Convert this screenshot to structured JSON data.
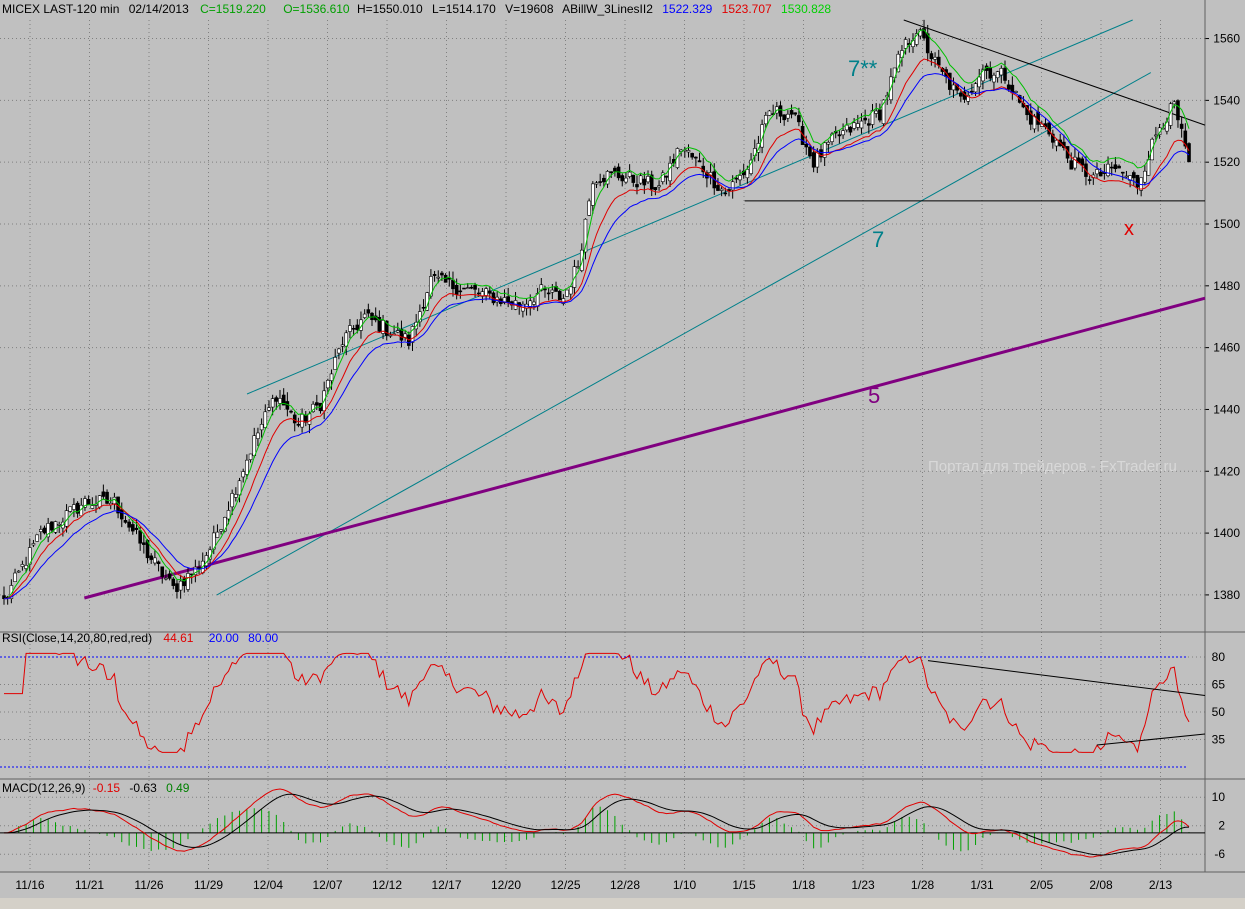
{
  "header": {
    "symbol": "MICEX LAST-120 min",
    "date": "02/14/2013",
    "close": "C=1519.220",
    "open": "O=1536.610",
    "high": "H=1550.010",
    "low": "L=1514.170",
    "volume": "V=19608",
    "study": "ABillW_3LinesII2",
    "line_blue": "1522.329",
    "line_red": "1523.707",
    "line_green": "1530.828"
  },
  "annotations": {
    "channel_top": "7**",
    "channel_bottom": "7",
    "support": "5",
    "target": "x",
    "watermark": "Портал для трейдеров - FxTrader.ru"
  },
  "rsi": {
    "title": "RSI(Close,14,20,80,red,red)",
    "value": "44.61",
    "low": "20.00",
    "high": "80.00"
  },
  "macd": {
    "title": "MACD(12,26,9)",
    "v1": "-0.15",
    "v2": "-0.63",
    "v3": "0.49"
  },
  "colors": {
    "background": "#c0c0c0",
    "green": "#00c000",
    "red": "#e00000",
    "blue": "#0000ff",
    "teal": "#00808a",
    "purple": "#800080"
  },
  "chart_data": [
    {
      "type": "candlestick",
      "title": "MICEX LAST-120 min",
      "ylim": [
        1368,
        1566
      ],
      "y_ticks": [
        1380,
        1400,
        1420,
        1440,
        1460,
        1480,
        1500,
        1520,
        1540,
        1560
      ],
      "x_ticks": [
        "11/16",
        "11/21",
        "11/26",
        "11/29",
        "12/04",
        "12/07",
        "12/12",
        "12/17",
        "12/20",
        "12/25",
        "12/28",
        "1/10",
        "1/15",
        "1/18",
        "1/23",
        "1/28",
        "1/31",
        "2/05",
        "2/08",
        "2/13"
      ],
      "close_anchors": [
        [
          0,
          1378
        ],
        [
          10,
          1400
        ],
        [
          22,
          1410
        ],
        [
          30,
          1410
        ],
        [
          38,
          1395
        ],
        [
          46,
          1382
        ],
        [
          52,
          1388
        ],
        [
          56,
          1395
        ],
        [
          62,
          1412
        ],
        [
          68,
          1430
        ],
        [
          74,
          1445
        ],
        [
          80,
          1435
        ],
        [
          86,
          1442
        ],
        [
          92,
          1462
        ],
        [
          98,
          1470
        ],
        [
          104,
          1466
        ],
        [
          110,
          1462
        ],
        [
          116,
          1482
        ],
        [
          122,
          1480
        ],
        [
          128,
          1478
        ],
        [
          134,
          1476
        ],
        [
          140,
          1474
        ],
        [
          146,
          1478
        ],
        [
          152,
          1476
        ],
        [
          156,
          1487
        ],
        [
          160,
          1515
        ],
        [
          166,
          1516
        ],
        [
          172,
          1514
        ],
        [
          178,
          1512
        ],
        [
          184,
          1525
        ],
        [
          190,
          1518
        ],
        [
          196,
          1510
        ],
        [
          202,
          1518
        ],
        [
          208,
          1536
        ],
        [
          214,
          1536
        ],
        [
          220,
          1520
        ],
        [
          226,
          1528
        ],
        [
          232,
          1532
        ],
        [
          238,
          1536
        ],
        [
          244,
          1556
        ],
        [
          248,
          1563
        ],
        [
          254,
          1550
        ],
        [
          260,
          1540
        ],
        [
          266,
          1550
        ],
        [
          272,
          1548
        ],
        [
          278,
          1535
        ],
        [
          284,
          1530
        ],
        [
          290,
          1520
        ],
        [
          296,
          1515
        ],
        [
          302,
          1518
        ],
        [
          308,
          1513
        ],
        [
          314,
          1532
        ],
        [
          318,
          1538
        ],
        [
          322,
          1519
        ]
      ],
      "n_bars": 323,
      "lines": [
        {
          "name": "ABillW_3LinesII2 blue",
          "last": 1522.329
        },
        {
          "name": "ABillW_3LinesII2 red",
          "last": 1523.707
        },
        {
          "name": "ABillW_3LinesII2 green",
          "last": 1530.828
        }
      ],
      "trendlines": [
        {
          "label": "7**",
          "from": [
            0.205,
            1445
          ],
          "to": [
            0.94,
            1566
          ]
        },
        {
          "label": "7",
          "from": [
            0.18,
            1380
          ],
          "to": [
            0.955,
            1549
          ]
        },
        {
          "label": "5",
          "from": [
            0.07,
            1379
          ],
          "to": [
            1.0,
            1476
          ]
        },
        {
          "label": "",
          "from": [
            0.75,
            1566
          ],
          "to": [
            1.0,
            1532
          ]
        },
        {
          "label": "",
          "from": [
            0.618,
            1507.5
          ],
          "to": [
            1.0,
            1507.5
          ]
        }
      ]
    },
    {
      "type": "line",
      "title": "RSI(Close,14,20,80,red,red)",
      "ylim": [
        14,
        86
      ],
      "y_ticks": [
        80,
        65,
        50,
        35
      ],
      "levels": [
        20,
        80
      ],
      "last": 44.61
    },
    {
      "type": "line",
      "title": "MACD(12,26,9)",
      "ylim": [
        -11,
        14
      ],
      "y_ticks": [
        10,
        2,
        -6
      ],
      "values": {
        "macd": -0.15,
        "signal": -0.63,
        "histogram": 0.49
      }
    }
  ]
}
